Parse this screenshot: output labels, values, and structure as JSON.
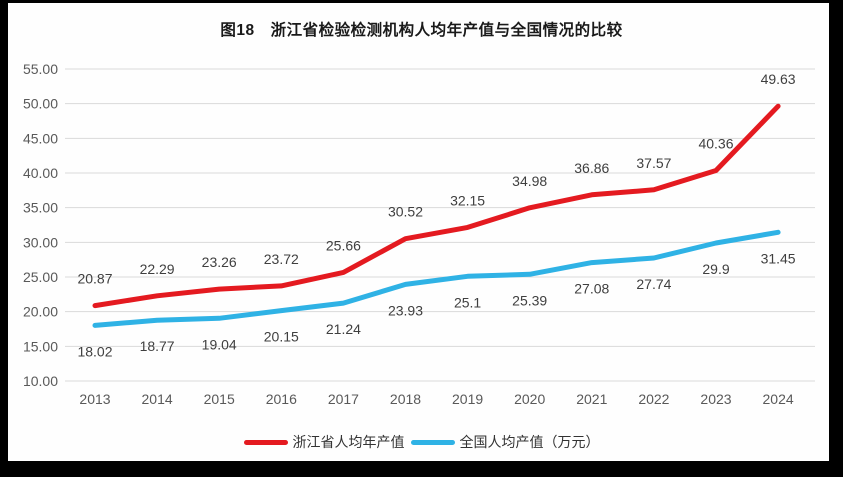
{
  "figure": {
    "title": "图18　浙江省检验检测机构人均年产值与全国情况的比较"
  },
  "chart_data": {
    "type": "line",
    "title": "图18　浙江省检验检测机构人均年产值与全国情况的比较",
    "categories": [
      "2013",
      "2014",
      "2015",
      "2016",
      "2017",
      "2018",
      "2019",
      "2020",
      "2021",
      "2022",
      "2023",
      "2024"
    ],
    "series": [
      {
        "name": "浙江省人均年产值",
        "color": "#e41a20",
        "values": [
          20.87,
          22.29,
          23.26,
          23.72,
          25.66,
          30.52,
          32.15,
          34.98,
          36.86,
          37.57,
          40.36,
          49.63
        ],
        "labels": [
          "20.87",
          "22.29",
          "23.26",
          "23.72",
          "25.66",
          "30.52",
          "32.15",
          "34.98",
          "36.86",
          "37.57",
          "40.36",
          "49.63"
        ],
        "label_placement": "above"
      },
      {
        "name": "全国人均产值（万元）",
        "color": "#2fb2e5",
        "values": [
          18.02,
          18.77,
          19.04,
          20.15,
          21.24,
          23.93,
          25.1,
          25.39,
          27.08,
          27.74,
          29.9,
          31.45
        ],
        "labels": [
          "18.02",
          "18.77",
          "19.04",
          "20.15",
          "21.24",
          "23.93",
          "25.1",
          "25.39",
          "27.08",
          "27.74",
          "29.9",
          "31.45"
        ],
        "label_placement": "below"
      }
    ],
    "ylim": [
      10,
      55
    ],
    "ytick_step": 5,
    "ytick_labels": [
      "55.00",
      "50.00",
      "45.00",
      "40.00",
      "35.00",
      "30.00",
      "25.00",
      "20.00",
      "15.00",
      "10.00"
    ],
    "xlabel": "",
    "ylabel": "",
    "grid": true,
    "legend_position": "bottom",
    "colors": {
      "gridline": "#d9d9d9",
      "axis_text": "#595959",
      "data_label_text": "#3f3f3f",
      "title_text": "#1a1a1a"
    }
  }
}
